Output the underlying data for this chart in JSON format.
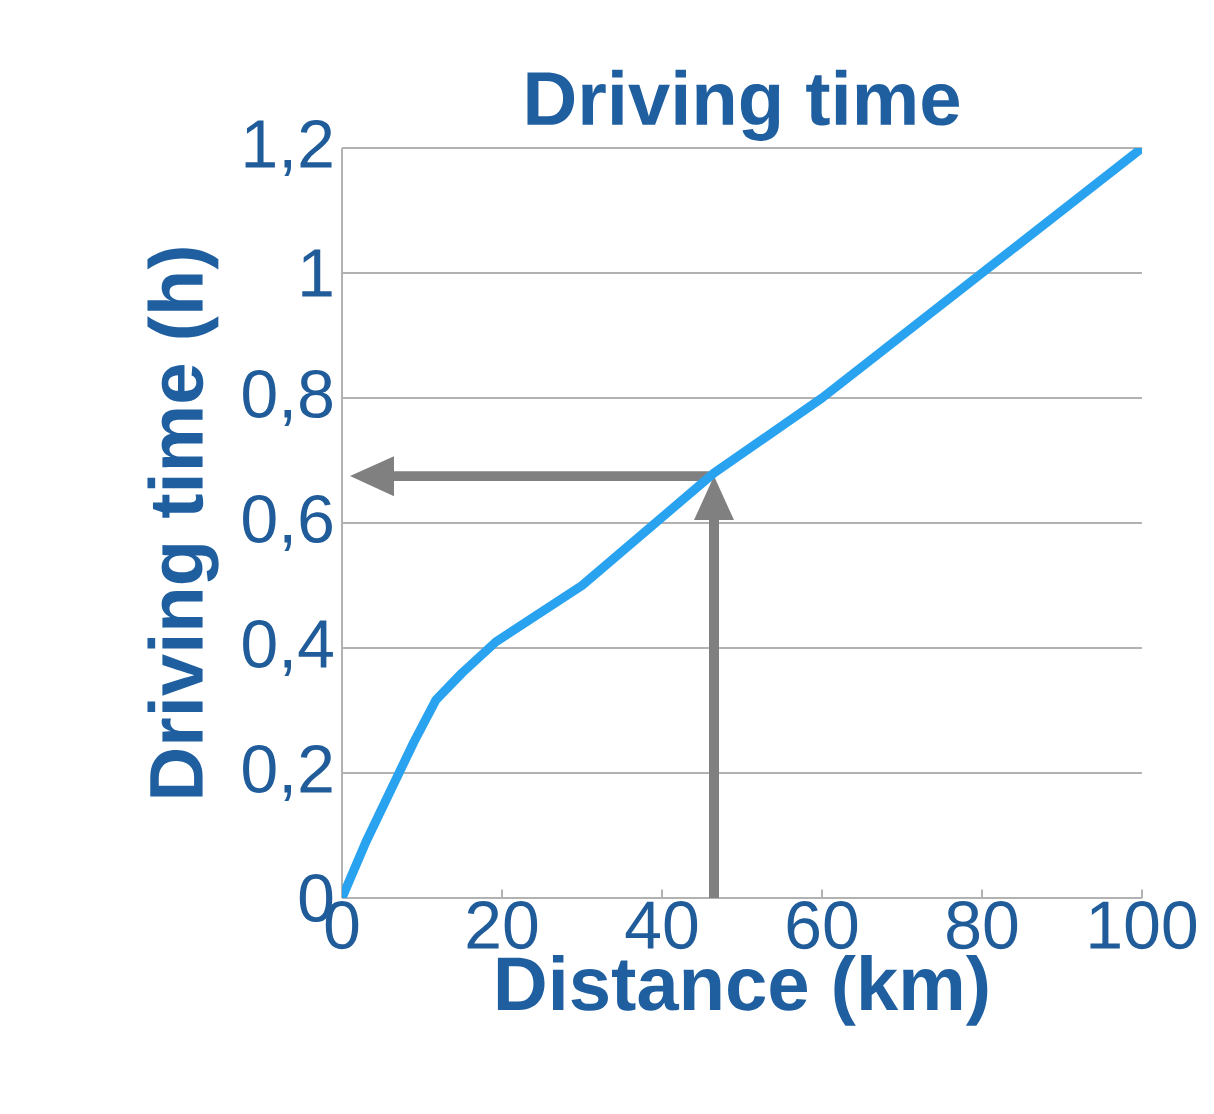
{
  "chart_data": {
    "type": "line",
    "title": "Driving time",
    "xlabel": "Distance (km)",
    "ylabel": "Driving time (h)",
    "xlim": [
      0,
      100
    ],
    "xticks": [
      0,
      20,
      40,
      60,
      80,
      100
    ],
    "ylim": [
      0,
      1.2
    ],
    "yticks": [
      {
        "value": 0,
        "label": "0"
      },
      {
        "value": 0.2,
        "label": "0,2"
      },
      {
        "value": 0.4,
        "label": "0,4"
      },
      {
        "value": 0.6,
        "label": "0,6"
      },
      {
        "value": 0.8,
        "label": "0,8"
      },
      {
        "value": 1,
        "label": "1"
      },
      {
        "value": 1.2,
        "label": "1,2"
      }
    ],
    "grid": "y",
    "series": [
      {
        "color": "#29a3f0",
        "x": [
          0,
          3,
          6,
          9,
          11.75,
          15,
          19.25,
          30,
          46.5,
          60,
          80,
          100
        ],
        "values": [
          0,
          0.09,
          0.17,
          0.25,
          0.317,
          0.36,
          0.41,
          0.5,
          0.68,
          0.8,
          1.0,
          1.2
        ]
      }
    ]
  }
}
